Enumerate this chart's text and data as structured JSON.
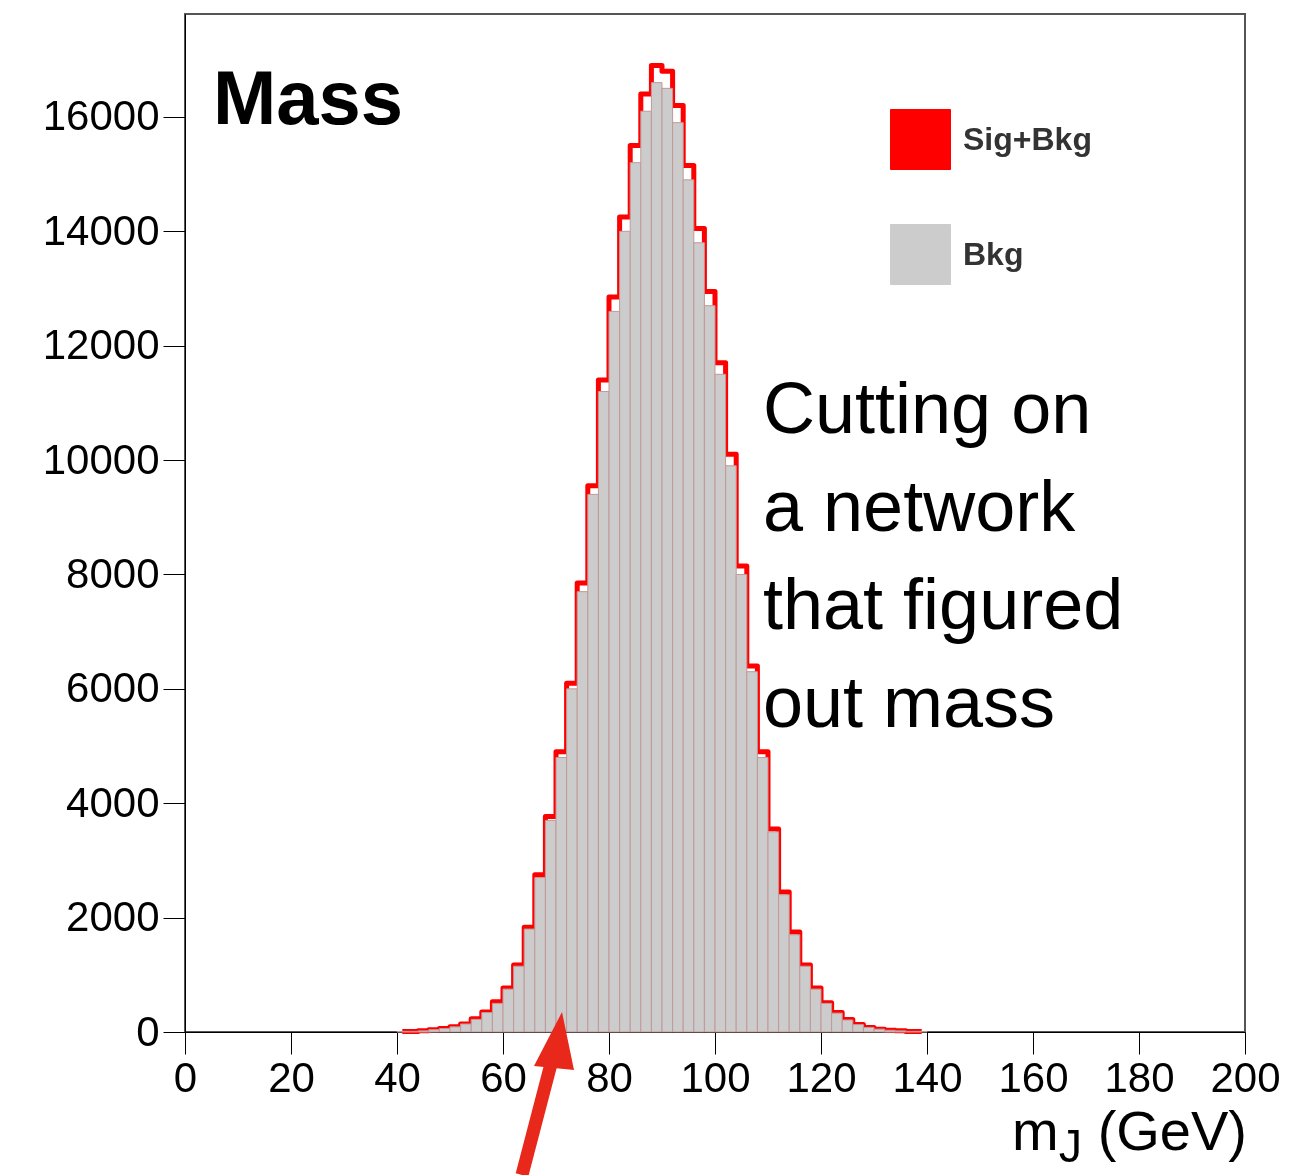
{
  "chart_data": {
    "type": "histogram",
    "title": "Mass",
    "xlabel": "m$_{J}$ (GeV)",
    "annotations": [
      "Cutting on\na network\nthat figured\nout mass"
    ],
    "bins": [
      40,
      42,
      44,
      46,
      48,
      50,
      52,
      54,
      56,
      58,
      60,
      62,
      64,
      66,
      68,
      70,
      72,
      74,
      76,
      78,
      80,
      82,
      84,
      86,
      88,
      90,
      92,
      94,
      96,
      98,
      100,
      102,
      104,
      106,
      108,
      110,
      112,
      114,
      116,
      118,
      120,
      122,
      124,
      126,
      128,
      130,
      132,
      134,
      136,
      138,
      140
    ],
    "series": [
      {
        "name": "Sig+Bkg",
        "color": "#ff0000",
        "type": "step",
        "x": [
          41,
          43,
          45,
          47,
          49,
          51,
          53,
          55,
          57,
          59,
          61,
          63,
          65,
          67,
          69,
          71,
          73,
          75,
          77,
          79,
          81,
          83,
          85,
          87,
          89,
          91,
          93,
          95,
          97,
          99,
          101,
          103,
          105,
          107,
          109,
          111,
          113,
          115,
          117,
          119,
          121,
          123,
          125,
          127,
          129,
          131,
          133,
          135,
          137,
          139
        ],
        "values": [
          10,
          10,
          20,
          40,
          60,
          90,
          140,
          230,
          350,
          530,
          770,
          1170,
          1830,
          2750,
          3770,
          4900,
          6100,
          7850,
          9550,
          11400,
          12850,
          14250,
          15500,
          16400,
          16900,
          16800,
          16200,
          15150,
          14050,
          12950,
          11700,
          10100,
          8150,
          6400,
          4900,
          3550,
          2450,
          1750,
          1170,
          770,
          510,
          340,
          220,
          130,
          80,
          50,
          30,
          20,
          10,
          10
        ]
      },
      {
        "name": "Bkg",
        "color": "#cccccc",
        "values": [
          10,
          10,
          20,
          40,
          60,
          90,
          140,
          220,
          340,
          500,
          750,
          1150,
          1800,
          2700,
          3700,
          4800,
          6000,
          7700,
          9400,
          11200,
          12600,
          14000,
          15200,
          16100,
          16600,
          16500,
          15900,
          14900,
          13800,
          12700,
          11500,
          9900,
          8000,
          6300,
          4800,
          3500,
          2400,
          1700,
          1150,
          750,
          500,
          330,
          210,
          130,
          80,
          50,
          30,
          20,
          10,
          10
        ]
      }
    ],
    "xlim": [
      0,
      200
    ],
    "xticks": [
      0,
      20,
      40,
      60,
      80,
      100,
      120,
      140,
      160,
      180,
      200
    ],
    "ylim": [
      0,
      17800
    ],
    "yticks": [
      0,
      2000,
      4000,
      6000,
      8000,
      10000,
      12000,
      14000,
      16000
    ],
    "legend": "top right"
  }
}
